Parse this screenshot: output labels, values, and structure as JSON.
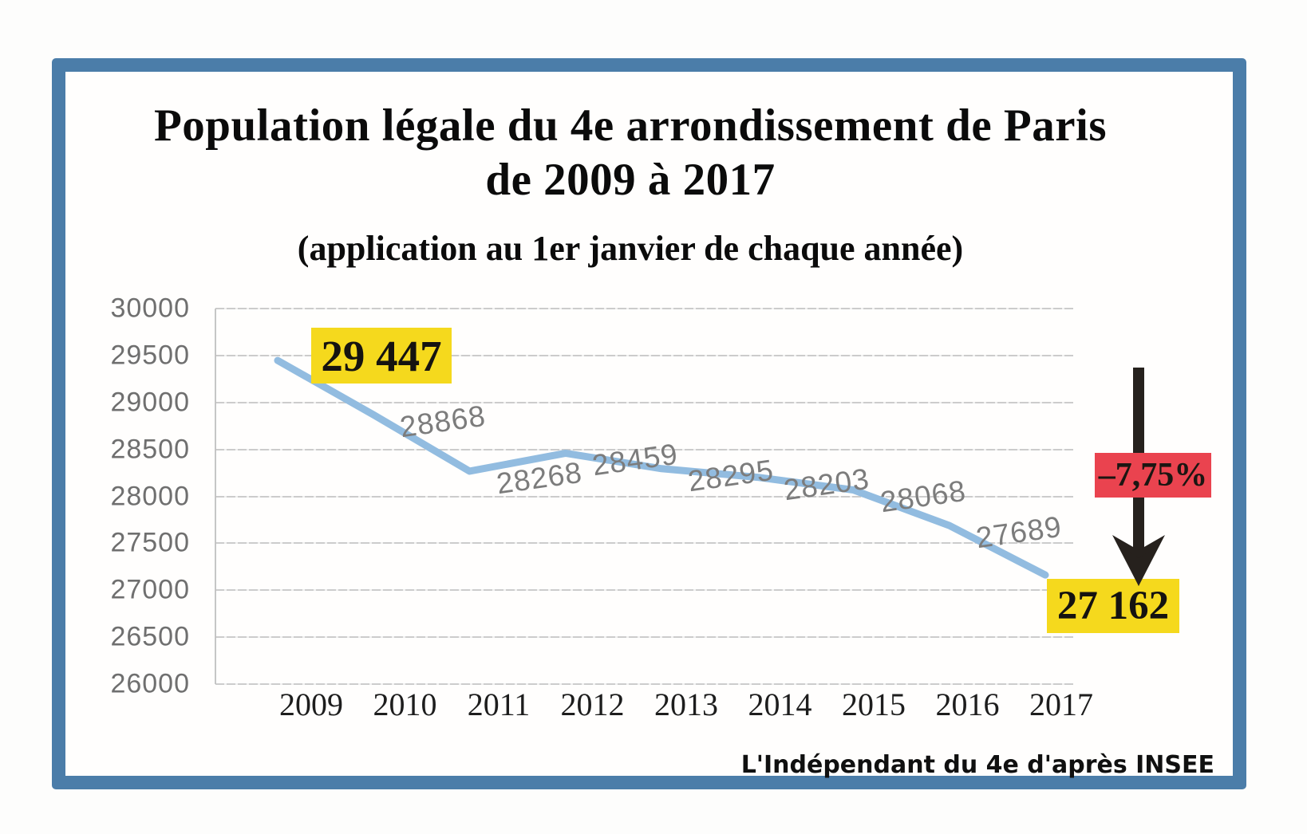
{
  "title": {
    "line1": "Population légale du 4e arrondissement de Paris",
    "line2": "de 2009 à 2017",
    "subtitle": "(application au 1er janvier de chaque année)"
  },
  "source": "L'Indépendant du 4e d'après INSEE",
  "colors": {
    "frame_blue": "#4b7da9",
    "line_blue": "#92bce0",
    "highlight_yellow": "#f5d91d",
    "badge_red": "#ea434f",
    "point_label_gray": "#7c7c7c",
    "axis_label_gray": "#6f6f6f",
    "grid_gray": "#c3c3c3",
    "arrow_black": "#26211d"
  },
  "chart_data": {
    "type": "line",
    "title": "Population légale du 4e arrondissement de Paris de 2009 à 2017",
    "subtitle": "(application au 1er janvier de chaque année)",
    "categories": [
      "2009",
      "2010",
      "2011",
      "2012",
      "2013",
      "2014",
      "2015",
      "2016",
      "2017"
    ],
    "series": [
      {
        "name": "Population légale du 4e arrondissement",
        "values": [
          29447,
          28868,
          28268,
          28459,
          28295,
          28203,
          28068,
          27689,
          27162
        ]
      }
    ],
    "point_labels": [
      "29 447",
      "28868",
      "28268",
      "28459",
      "28295",
      "28203",
      "28068",
      "27689",
      "27 162"
    ],
    "ylim": [
      26000,
      30000
    ],
    "ytick_step": 500,
    "ytick_labels": [
      "30000",
      "29500",
      "29000",
      "28500",
      "28000",
      "27500",
      "27000",
      "26500",
      "26000"
    ],
    "xlabel": "",
    "ylabel": "",
    "grid": true,
    "legend": "none",
    "annotations": {
      "start_highlight": "29 447",
      "end_highlight": "27 162",
      "percent_change": "–7,75%",
      "arrow_direction": "down"
    }
  }
}
